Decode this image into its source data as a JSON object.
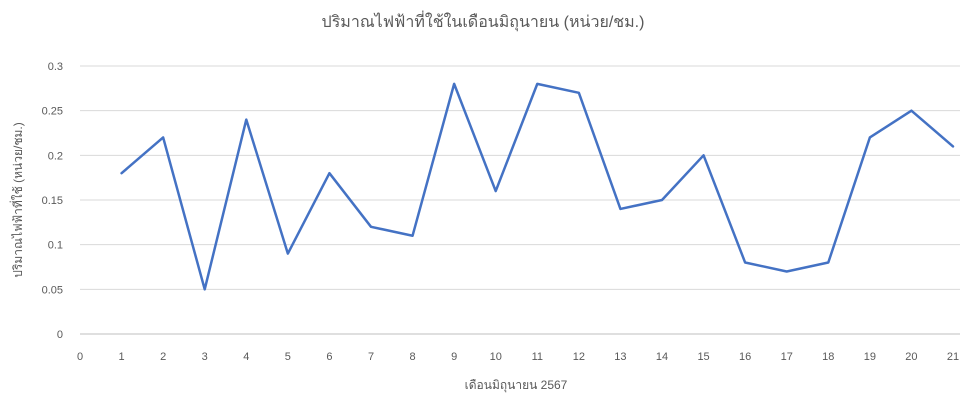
{
  "colors": {
    "line": "#4472c4",
    "grid": "#d9d9d9",
    "axis": "#bfbfbf",
    "text": "#595959",
    "background": "#ffffff"
  },
  "chart_data": {
    "type": "line",
    "title": "ปริมาณไฟฟ้าที่ใช้ในเดือนมิถุนายน (หน่วย/ชม.)",
    "xlabel": "เดือนมิถุนายน 2567",
    "ylabel": "ปริมาณไฟฟ้าที่ใช้ (หน่วย/ชม.)",
    "xlim": [
      0,
      21
    ],
    "ylim": [
      0,
      0.3
    ],
    "x_ticks": [
      0,
      1,
      2,
      3,
      4,
      5,
      6,
      7,
      8,
      9,
      10,
      11,
      12,
      13,
      14,
      15,
      16,
      17,
      18,
      19,
      20,
      21
    ],
    "y_ticks": [
      0,
      0.05,
      0.1,
      0.15,
      0.2,
      0.25,
      0.3
    ],
    "grid": true,
    "legend": "none",
    "x": [
      1,
      2,
      3,
      4,
      5,
      6,
      7,
      8,
      9,
      10,
      11,
      12,
      13,
      14,
      15,
      16,
      17,
      18,
      19,
      20,
      21
    ],
    "series": [
      {
        "values": [
          0.18,
          0.22,
          0.05,
          0.24,
          0.09,
          0.18,
          0.12,
          0.11,
          0.28,
          0.16,
          0.28,
          0.27,
          0.14,
          0.15,
          0.2,
          0.08,
          0.07,
          0.08,
          0.22,
          0.25,
          0.21
        ]
      }
    ]
  }
}
